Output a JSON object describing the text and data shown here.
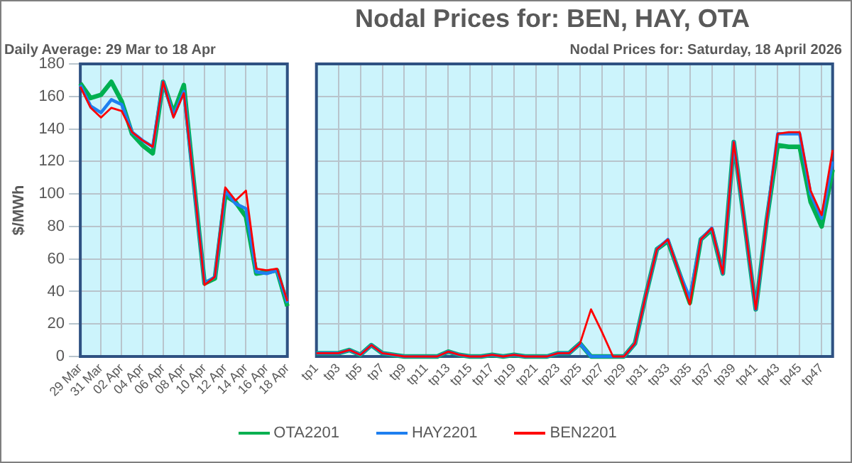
{
  "chart_data": [
    {
      "type": "line",
      "subtitle": "Daily Average: 29 Mar to 18 Apr",
      "ylabel": "$/MWh",
      "categories": [
        "29 Mar",
        null,
        "31 Mar",
        null,
        "02 Apr",
        null,
        "04 Apr",
        null,
        "06 Apr",
        null,
        "08 Apr",
        null,
        "10 Apr",
        null,
        "12 Apr",
        null,
        "14 Apr",
        null,
        "16 Apr",
        null,
        "18 Apr"
      ],
      "ylim": [
        0,
        180
      ],
      "yticks": [
        0,
        20,
        40,
        60,
        80,
        100,
        120,
        140,
        160,
        180
      ],
      "grid": true,
      "marker": "none",
      "line_style": "solid",
      "series": [
        {
          "color": "#00b050",
          "values": [
            168,
            159,
            161,
            169,
            157,
            137,
            130,
            125,
            169,
            150,
            167,
            105,
            45,
            48,
            99,
            95,
            86,
            51,
            52,
            53,
            31
          ]
        },
        {
          "color": "#1e7ff0",
          "values": [
            167,
            154,
            150,
            158,
            155,
            138,
            133,
            129,
            169,
            148,
            163,
            104,
            45,
            49,
            102,
            94,
            91,
            52,
            51,
            53,
            33
          ]
        },
        {
          "color": "#ff0000",
          "values": [
            166,
            153,
            147,
            153,
            151,
            138,
            133,
            129,
            169,
            147,
            162,
            105,
            44,
            49,
            104,
            96,
            102,
            54,
            53,
            54,
            34
          ]
        }
      ]
    },
    {
      "type": "line",
      "title": "Nodal Prices for: BEN, HAY, OTA",
      "subtitle": "Nodal Prices for: Saturday, 18 April 2026",
      "categories": [
        "tp1",
        null,
        "tp3",
        null,
        "tp5",
        null,
        "tp7",
        null,
        "tp9",
        null,
        "tp11",
        null,
        "tp13",
        null,
        "tp15",
        null,
        "tp17",
        null,
        "tp19",
        null,
        "tp21",
        null,
        "tp23",
        null,
        "tp25",
        null,
        "tp27",
        null,
        "tp29",
        null,
        "tp31",
        null,
        "tp33",
        null,
        "tp35",
        null,
        "tp37",
        null,
        "tp39",
        null,
        "tp41",
        null,
        "tp43",
        null,
        "tp45",
        null,
        "tp47",
        null
      ],
      "ylim": [
        0,
        180
      ],
      "yticks": [
        0,
        20,
        40,
        60,
        80,
        100,
        120,
        140,
        160,
        180
      ],
      "tick_labels": "x",
      "grid": true,
      "legend": "bottom",
      "marker": "none",
      "line_style": "solid",
      "series": [
        {
          "name": "OTA2201",
          "color": "#00b050",
          "values": [
            2,
            2,
            2,
            4,
            1,
            7,
            2,
            1,
            0,
            0,
            0,
            0,
            3,
            1,
            0,
            0,
            1,
            0,
            1,
            0,
            0,
            0,
            2,
            2,
            8,
            0,
            0,
            0,
            0,
            8,
            38,
            66,
            71,
            52,
            33,
            72,
            78,
            51,
            132,
            81,
            29,
            84,
            130,
            129,
            129,
            95,
            80,
            115
          ]
        },
        {
          "name": "HAY2201",
          "color": "#1e7ff0",
          "values": [
            2,
            2,
            2,
            4,
            1,
            7,
            2,
            1,
            0,
            0,
            0,
            0,
            3,
            1,
            0,
            0,
            1,
            0,
            1,
            0,
            0,
            0,
            2,
            2,
            8,
            0,
            0,
            0,
            0,
            8,
            38,
            66,
            72,
            52,
            36,
            72,
            79,
            51,
            132,
            81,
            29,
            84,
            137,
            137,
            137,
            100,
            85,
            120
          ]
        },
        {
          "name": "BEN2201",
          "color": "#ff0000",
          "values": [
            2,
            2,
            2,
            4,
            1,
            7,
            2,
            1,
            0,
            0,
            0,
            0,
            3,
            1,
            0,
            0,
            1,
            0,
            1,
            0,
            0,
            0,
            2,
            2,
            8,
            29,
            15,
            0,
            0,
            8,
            38,
            66,
            72,
            52,
            32,
            72,
            79,
            51,
            132,
            81,
            29,
            84,
            137,
            138,
            138,
            102,
            87,
            127
          ]
        }
      ]
    }
  ]
}
